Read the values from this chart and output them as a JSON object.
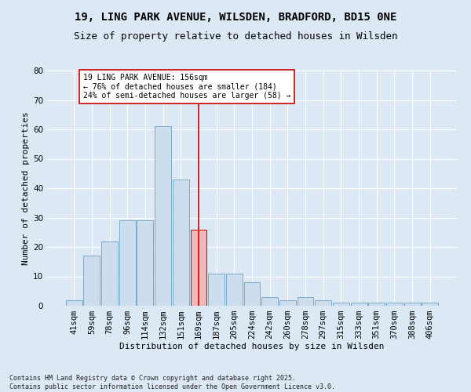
{
  "title1": "19, LING PARK AVENUE, WILSDEN, BRADFORD, BD15 0NE",
  "title2": "Size of property relative to detached houses in Wilsden",
  "xlabel": "Distribution of detached houses by size in Wilsden",
  "ylabel": "Number of detached properties",
  "categories": [
    "41sqm",
    "59sqm",
    "78sqm",
    "96sqm",
    "114sqm",
    "132sqm",
    "151sqm",
    "169sqm",
    "187sqm",
    "205sqm",
    "224sqm",
    "242sqm",
    "260sqm",
    "278sqm",
    "297sqm",
    "315sqm",
    "333sqm",
    "351sqm",
    "370sqm",
    "388sqm",
    "406sqm"
  ],
  "values": [
    2,
    17,
    22,
    29,
    29,
    61,
    43,
    26,
    11,
    11,
    8,
    3,
    2,
    3,
    2,
    1,
    1,
    1,
    1,
    1,
    1
  ],
  "highlight_index": 7,
  "bar_color": "#ccdded",
  "bar_edge_color": "#7baac8",
  "highlight_bar_color": "#f0b8b8",
  "highlight_bar_edge_color": "#cc0000",
  "vline_color": "#cc0000",
  "vline_x_index": 7,
  "ylim": [
    0,
    80
  ],
  "yticks": [
    0,
    10,
    20,
    30,
    40,
    50,
    60,
    70,
    80
  ],
  "annotation_title": "19 LING PARK AVENUE: 156sqm",
  "annotation_line1": "← 76% of detached houses are smaller (184)",
  "annotation_line2": "24% of semi-detached houses are larger (58) →",
  "annotation_box_facecolor": "#ffffff",
  "annotation_box_edgecolor": "#cc0000",
  "bg_color": "#dce9f5",
  "grid_color": "#ffffff",
  "footer": "Contains HM Land Registry data © Crown copyright and database right 2025.\nContains public sector information licensed under the Open Government Licence v3.0.",
  "title_fontsize": 10,
  "subtitle_fontsize": 9,
  "axis_label_fontsize": 8,
  "tick_fontsize": 7.5,
  "annotation_fontsize": 7,
  "footer_fontsize": 6
}
